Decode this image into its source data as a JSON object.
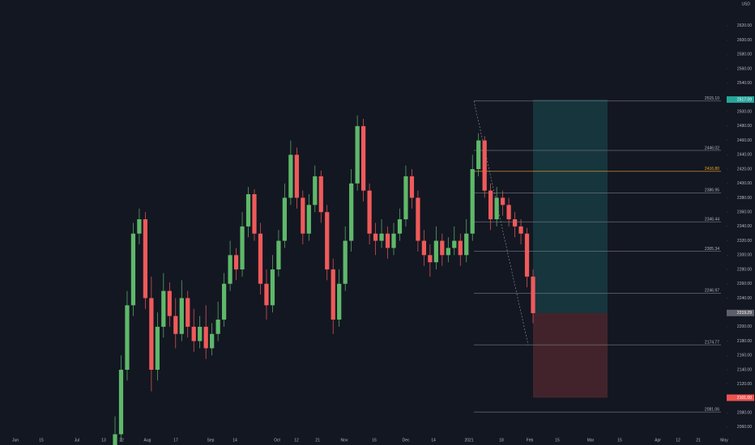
{
  "chart_data": {
    "type": "candlestick",
    "currency": "USD",
    "ylim": [
      2035,
      2656
    ],
    "yticks": [
      {
        "value": 2060,
        "label": "2060.00"
      },
      {
        "value": 2080,
        "label": "2080.00"
      },
      {
        "value": 2100,
        "label": "2100.00"
      },
      {
        "value": 2120,
        "label": "2120.00"
      },
      {
        "value": 2140,
        "label": "2140.00"
      },
      {
        "value": 2160,
        "label": "2160.00"
      },
      {
        "value": 2180,
        "label": "2180.00"
      },
      {
        "value": 2200,
        "label": "2200.00"
      },
      {
        "value": 2240,
        "label": "2240.00"
      },
      {
        "value": 2260,
        "label": "2260.00"
      },
      {
        "value": 2280,
        "label": "2280.00"
      },
      {
        "value": 2300,
        "label": "2300.00"
      },
      {
        "value": 2320,
        "label": "2320.00"
      },
      {
        "value": 2340,
        "label": "2340.00"
      },
      {
        "value": 2360,
        "label": "2360.00"
      },
      {
        "value": 2380,
        "label": "2380.00"
      },
      {
        "value": 2400,
        "label": "2400.00"
      },
      {
        "value": 2420,
        "label": "2420.00"
      },
      {
        "value": 2440,
        "label": "2440.00"
      },
      {
        "value": 2460,
        "label": "2460.00"
      },
      {
        "value": 2480,
        "label": "2480.00"
      },
      {
        "value": 2500,
        "label": "2500.00"
      },
      {
        "value": 2540,
        "label": "2540.00"
      },
      {
        "value": 2560,
        "label": "2560.00"
      },
      {
        "value": 2580,
        "label": "2580.00"
      },
      {
        "value": 2600,
        "label": "2600.00"
      },
      {
        "value": 2620,
        "label": "2620.00"
      }
    ],
    "x_labels": [
      "Jun",
      "15",
      "Jul",
      "13",
      "22",
      "Aug",
      "17",
      "Sep",
      "14",
      "Oct",
      "12",
      "21",
      "Nov",
      "16",
      "Dec",
      "14",
      "2021",
      "18",
      "Feb",
      "15",
      "Mar",
      "15",
      "Apr",
      "12",
      "21",
      "May"
    ],
    "up_color": "#5fb86a",
    "down_color": "#ef5a5a",
    "open": [
      2030,
      2050,
      2140,
      2230,
      2330,
      2350,
      2240,
      2140,
      2200,
      2250,
      2215,
      2190,
      2240,
      2200,
      2180,
      2200,
      2170,
      2190,
      2210,
      2260,
      2300,
      2280,
      2340,
      2385,
      2330,
      2260,
      2230,
      2280,
      2320,
      2380,
      2440,
      2380,
      2330,
      2370,
      2410,
      2360,
      2280,
      2210,
      2260,
      2320,
      2400,
      2480,
      2390,
      2330,
      2320,
      2330,
      2310,
      2330,
      2350,
      2410,
      2380,
      2320,
      2300,
      2290,
      2320,
      2300,
      2310,
      2320,
      2300,
      2330,
      2420,
      2460,
      2390,
      2350,
      2380,
      2370,
      2350,
      2340,
      2330,
      2270
    ],
    "high": [
      2075,
      2160,
      2250,
      2345,
      2365,
      2360,
      2270,
      2220,
      2275,
      2262,
      2240,
      2265,
      2250,
      2225,
      2215,
      2230,
      2205,
      2235,
      2275,
      2320,
      2310,
      2360,
      2395,
      2392,
      2345,
      2280,
      2300,
      2335,
      2400,
      2460,
      2450,
      2390,
      2385,
      2425,
      2418,
      2370,
      2295,
      2280,
      2340,
      2420,
      2495,
      2490,
      2400,
      2345,
      2350,
      2340,
      2345,
      2365,
      2425,
      2420,
      2390,
      2335,
      2315,
      2340,
      2330,
      2325,
      2340,
      2330,
      2350,
      2440,
      2470,
      2466,
      2400,
      2395,
      2390,
      2380,
      2360,
      2350,
      2338,
      2280
    ],
    "low": [
      2020,
      2040,
      2125,
      2215,
      2315,
      2225,
      2110,
      2125,
      2185,
      2200,
      2170,
      2180,
      2185,
      2165,
      2170,
      2155,
      2160,
      2180,
      2200,
      2250,
      2265,
      2270,
      2325,
      2320,
      2245,
      2210,
      2220,
      2270,
      2310,
      2370,
      2365,
      2315,
      2320,
      2360,
      2345,
      2265,
      2190,
      2200,
      2250,
      2305,
      2390,
      2375,
      2315,
      2300,
      2310,
      2295,
      2300,
      2320,
      2340,
      2365,
      2305,
      2285,
      2270,
      2280,
      2285,
      2290,
      2300,
      2285,
      2290,
      2320,
      2410,
      2380,
      2335,
      2340,
      2355,
      2340,
      2325,
      2315,
      2255,
      2205
    ],
    "close": [
      2050,
      2140,
      2230,
      2330,
      2350,
      2240,
      2140,
      2200,
      2250,
      2215,
      2190,
      2240,
      2200,
      2180,
      2200,
      2170,
      2190,
      2210,
      2260,
      2300,
      2280,
      2340,
      2385,
      2330,
      2260,
      2230,
      2280,
      2320,
      2380,
      2440,
      2380,
      2330,
      2370,
      2410,
      2360,
      2280,
      2210,
      2260,
      2320,
      2400,
      2480,
      2390,
      2330,
      2320,
      2330,
      2310,
      2330,
      2350,
      2410,
      2380,
      2320,
      2300,
      2290,
      2320,
      2300,
      2310,
      2320,
      2300,
      2330,
      2420,
      2460,
      2390,
      2350,
      2380,
      2370,
      2350,
      2340,
      2330,
      2270,
      2219
    ],
    "fib_levels": [
      {
        "value": 2515.1,
        "label": "2515.10"
      },
      {
        "value": 2446.02,
        "label": "2446.02"
      },
      {
        "value": 2416.8,
        "label": "2416.80"
      },
      {
        "value": 2386.95,
        "label": "2386.95"
      },
      {
        "value": 2346.44,
        "label": "2346.44"
      },
      {
        "value": 2305.34,
        "label": "2305.34"
      },
      {
        "value": 2246.97,
        "label": "2246.97"
      },
      {
        "value": 2174.77,
        "label": "2174.77"
      },
      {
        "value": 2081.06,
        "label": "2081.06"
      }
    ],
    "fib_highlight_color": "#f5a623",
    "position": {
      "target": 2517.09,
      "entry": 2219.29,
      "stop": {
        "value": 2101,
        "label": "2101.00"
      }
    }
  }
}
